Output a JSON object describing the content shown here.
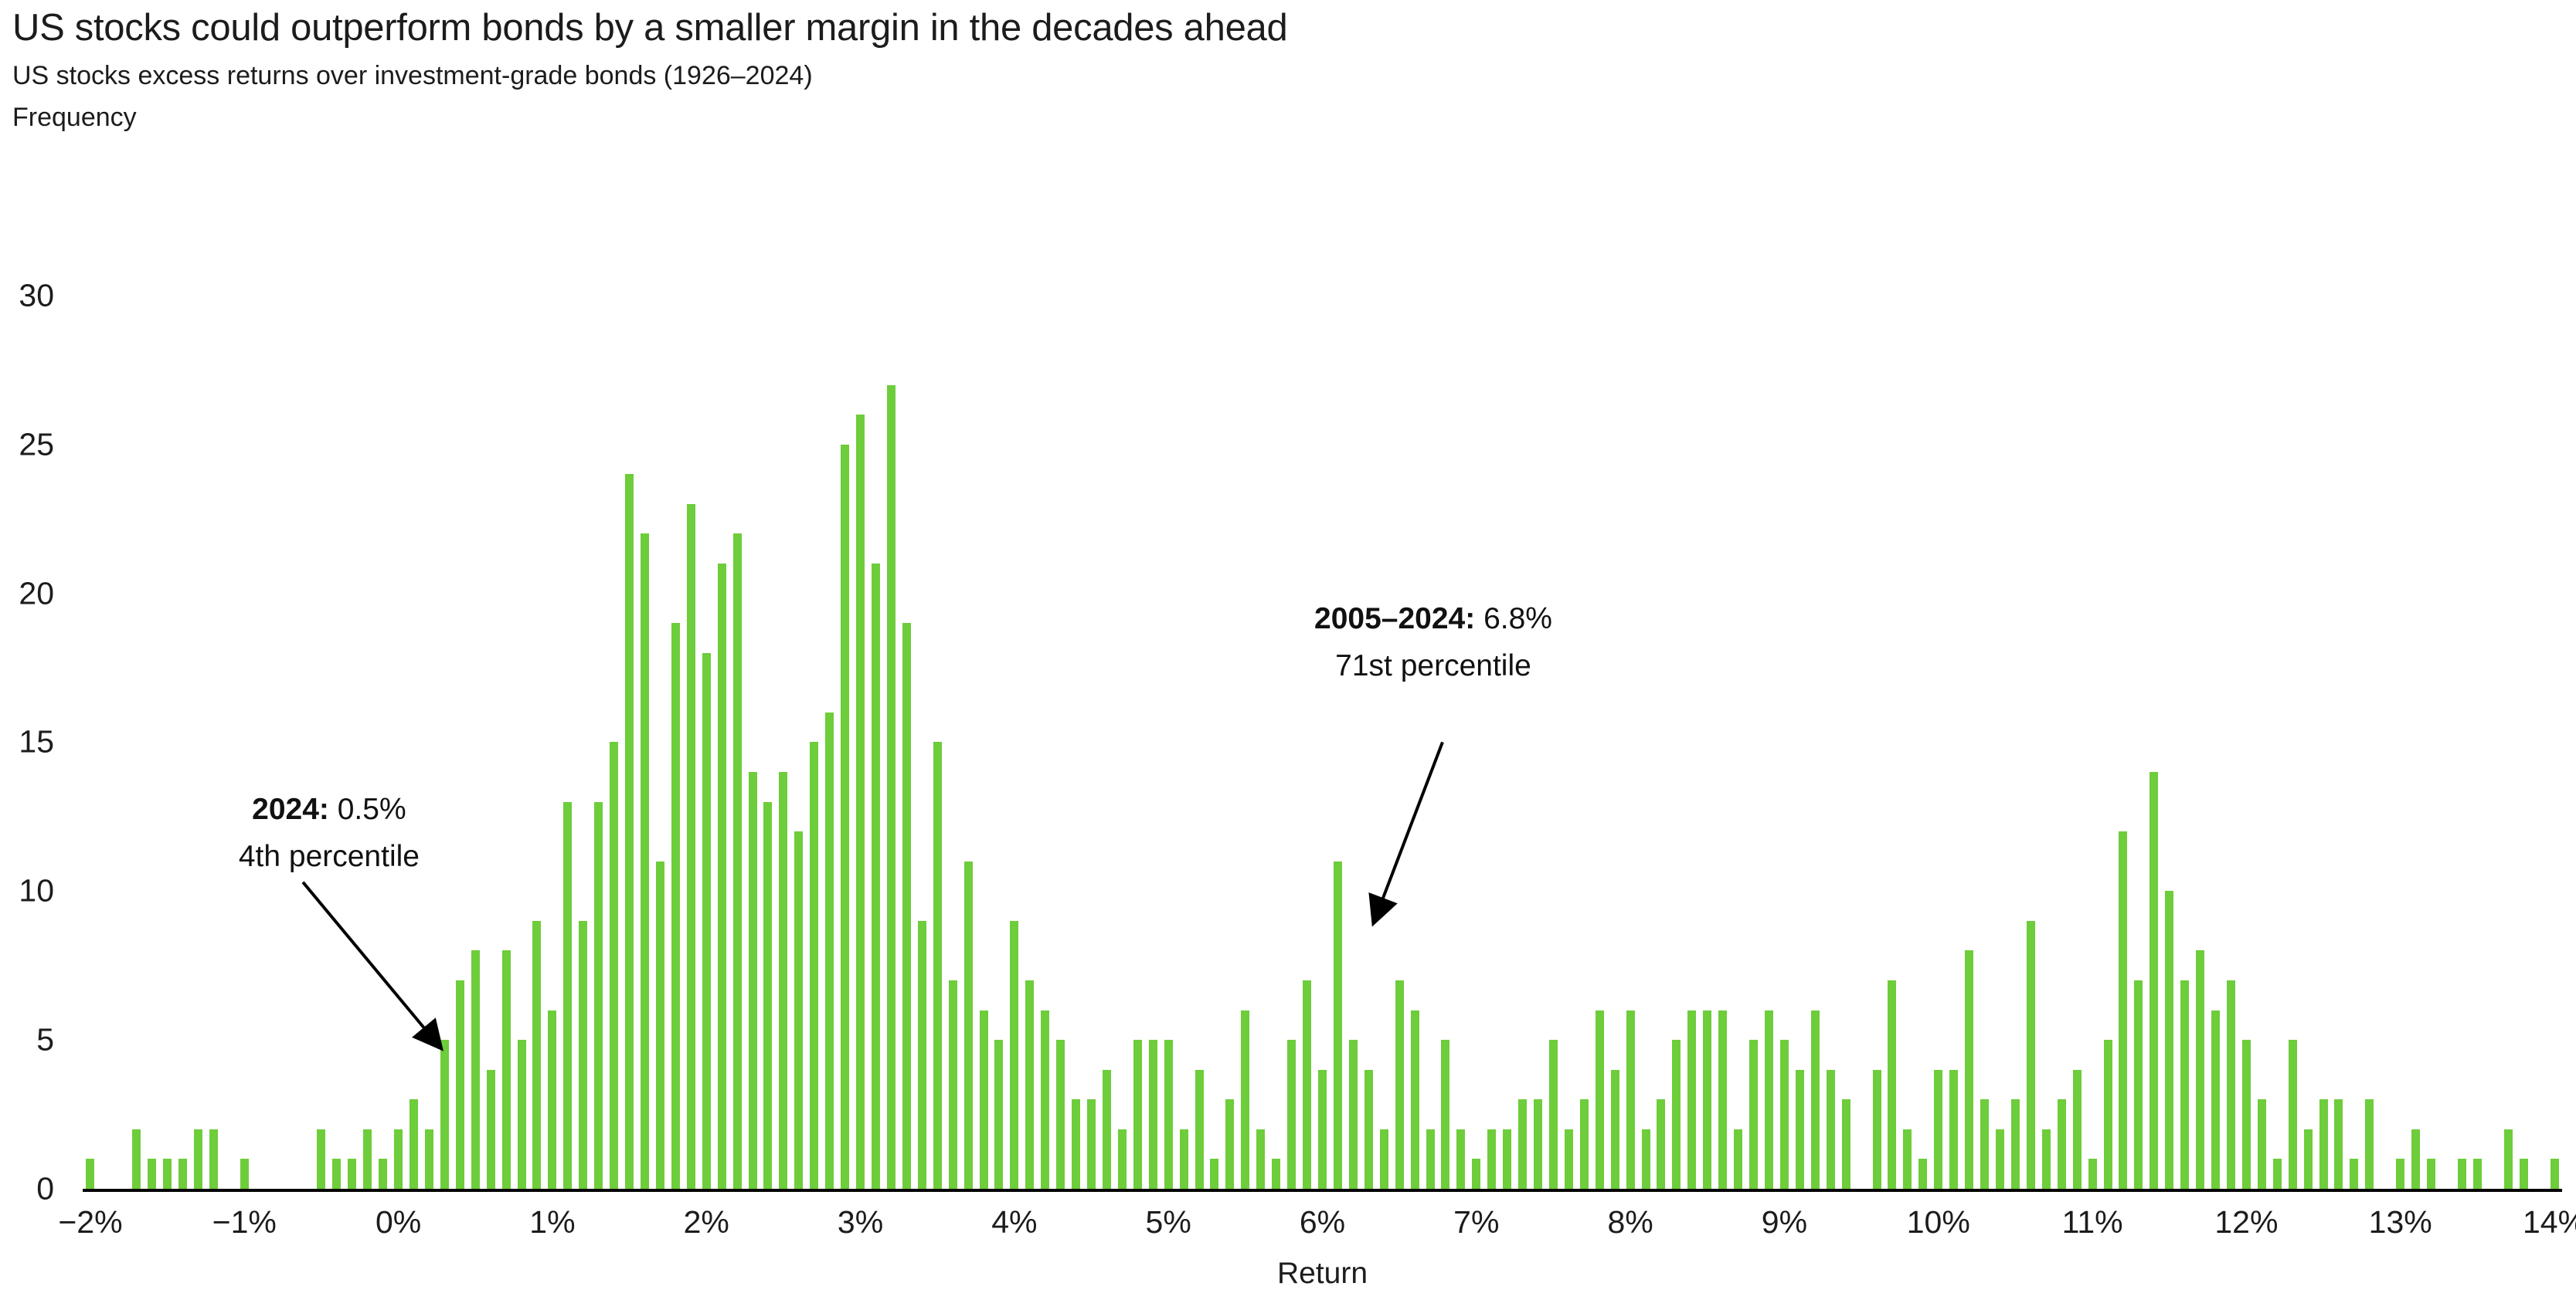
{
  "header": {
    "title": "US stocks could outperform bonds by a smaller margin in the decades ahead",
    "subtitle": "US stocks excess returns over investment-grade bonds (1926–2024)"
  },
  "chart_data": {
    "type": "bar",
    "title": "US stocks could outperform bonds by a smaller margin in the decades ahead",
    "subtitle": "US stocks excess returns over investment-grade bonds (1926–2024)",
    "xlabel": "Return",
    "ylabel": "Frequency",
    "ylim": [
      0,
      30
    ],
    "y_ticks": [
      0,
      5,
      10,
      15,
      20,
      25,
      30
    ],
    "bin_start": -2.0,
    "bin_width": 0.1,
    "x_tick_values": [
      -2,
      -1,
      0,
      1,
      2,
      3,
      4,
      5,
      6,
      7,
      8,
      9,
      10,
      11,
      12,
      13,
      14
    ],
    "x_tick_labels": [
      "−2%",
      "−1%",
      "0%",
      "1%",
      "2%",
      "3%",
      "4%",
      "5%",
      "6%",
      "7%",
      "8%",
      "9%",
      "10%",
      "11%",
      "12%",
      "13%",
      "14%"
    ],
    "bar_color": "#6dcd3a",
    "axis_color": "#000000",
    "grid": false,
    "legend": null,
    "values": [
      1,
      0,
      0,
      2,
      1,
      1,
      1,
      2,
      2,
      0,
      1,
      0,
      0,
      0,
      0,
      2,
      1,
      1,
      2,
      1,
      2,
      3,
      2,
      5,
      7,
      8,
      4,
      8,
      5,
      9,
      6,
      13,
      9,
      13,
      15,
      24,
      22,
      11,
      19,
      23,
      18,
      21,
      22,
      14,
      13,
      14,
      12,
      15,
      16,
      25,
      26,
      21,
      27,
      19,
      9,
      15,
      7,
      11,
      6,
      5,
      9,
      7,
      6,
      5,
      3,
      3,
      4,
      2,
      5,
      5,
      5,
      2,
      4,
      1,
      3,
      6,
      2,
      1,
      5,
      7,
      4,
      11,
      5,
      4,
      2,
      7,
      6,
      2,
      5,
      2,
      1,
      2,
      2,
      3,
      3,
      5,
      2,
      3,
      6,
      4,
      6,
      2,
      3,
      5,
      6,
      6,
      6,
      2,
      5,
      6,
      5,
      4,
      6,
      4,
      3,
      0,
      4,
      7,
      2,
      1,
      4,
      4,
      8,
      3,
      2,
      3,
      9,
      2,
      3,
      4,
      1,
      5,
      12,
      7,
      14,
      10,
      7,
      8,
      6,
      7,
      5,
      3,
      1,
      5,
      2,
      3,
      3,
      1,
      3,
      0,
      1,
      2,
      1,
      0,
      1,
      1,
      0,
      2,
      1,
      0,
      1
    ],
    "annotations": [
      {
        "bold": "2024:",
        "text": " 0.5%",
        "line2": "4th percentile",
        "text_x_value": -0.45,
        "text_top_freq": 13.5,
        "arrow_from": [
          -0.62,
          10.3
        ],
        "arrow_to": [
          0.28,
          4.7
        ]
      },
      {
        "bold": "2005–2024:",
        "text": " 6.8%",
        "line2": "71st percentile",
        "text_x_value": 6.72,
        "text_top_freq": 19.9,
        "arrow_from": [
          6.78,
          15.0
        ],
        "arrow_to": [
          6.33,
          8.9
        ]
      }
    ]
  }
}
